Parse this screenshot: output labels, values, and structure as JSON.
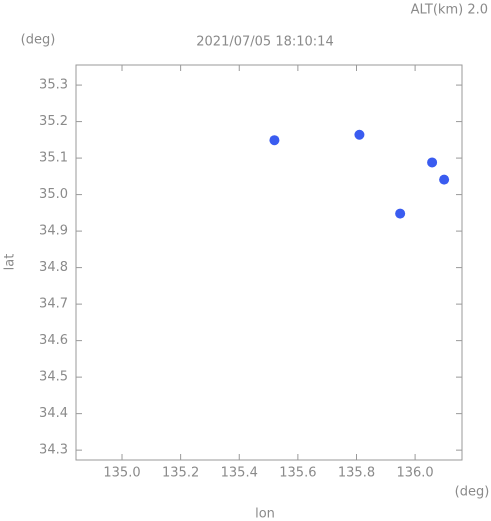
{
  "chart_data": {
    "type": "scatter",
    "subtitle": "ALT(km) 2.0",
    "title": "2021/07/05 18:10:14",
    "x_label": "lon",
    "y_label": "lat",
    "x_unit": "(deg)",
    "y_unit": "(deg)",
    "color": "#3a5cf0",
    "x": [
      135.52,
      135.81,
      136.058,
      136.099,
      135.949
    ],
    "y": [
      35.149,
      35.164,
      35.088,
      35.041,
      34.948
    ],
    "xlim": [
      134.843,
      136.16
    ],
    "ylim": [
      34.273,
      35.355
    ],
    "xticks": [
      {
        "value": 135.0,
        "label": "135.0"
      },
      {
        "value": 135.2,
        "label": "135.2"
      },
      {
        "value": 135.4,
        "label": "135.4"
      },
      {
        "value": 135.6,
        "label": "135.6"
      },
      {
        "value": 135.8,
        "label": "135.8"
      },
      {
        "value": 136.0,
        "label": "136.0"
      }
    ],
    "yticks": [
      34.3,
      34.4,
      34.5,
      34.6,
      34.7,
      34.8,
      34.9,
      {
        "value": 35.0,
        "label": "35.0"
      },
      35.1,
      35.2,
      35.3
    ]
  }
}
